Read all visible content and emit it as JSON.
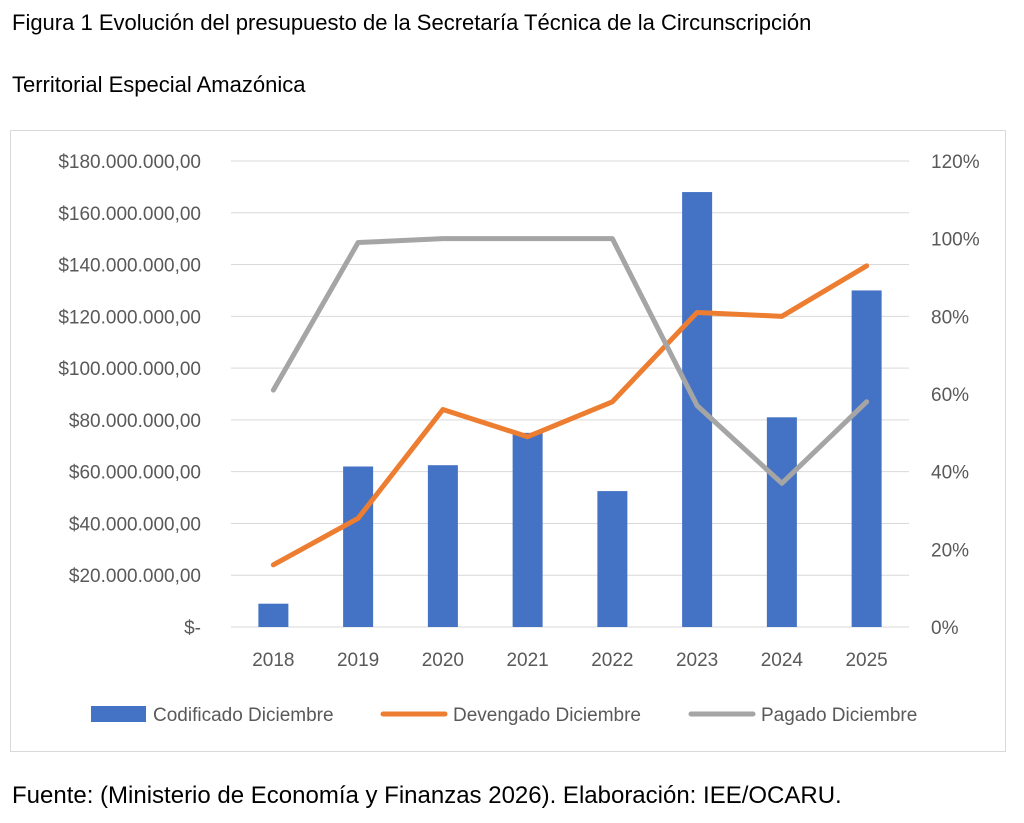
{
  "caption": {
    "line1": "Figura 1 Evolución del presupuesto de la Secretaría Técnica de la Circunscripción",
    "line2": "Territorial Especial Amazónica"
  },
  "source": "Fuente: (Ministerio de Economía y Finanzas 2026). Elaboración: IEE/OCARU.",
  "chart_data": {
    "type": "bar",
    "categories": [
      "2018",
      "2019",
      "2020",
      "2021",
      "2022",
      "2023",
      "2024",
      "2025"
    ],
    "series": [
      {
        "name": "Codificado Diciembre",
        "type": "bar",
        "axis": "left",
        "color": "#4472C4",
        "values": [
          9000000,
          62000000,
          62500000,
          75000000,
          52500000,
          168000000,
          81000000,
          130000000
        ]
      },
      {
        "name": "Devengado Diciembre",
        "type": "line",
        "axis": "right",
        "color": "#ED7D31",
        "values": [
          16,
          28,
          56,
          49,
          58,
          81,
          80,
          93
        ]
      },
      {
        "name": "Pagado Diciembre",
        "type": "line",
        "axis": "right",
        "color": "#A5A5A5",
        "values": [
          61,
          99,
          100,
          100,
          100,
          57,
          37,
          58
        ]
      }
    ],
    "left_axis": {
      "ylim": [
        0,
        180000000
      ],
      "ticks": [
        0,
        20000000,
        40000000,
        60000000,
        80000000,
        100000000,
        120000000,
        140000000,
        160000000,
        180000000
      ],
      "tick_labels": [
        "$-",
        "$20.000.000,00",
        "$40.000.000,00",
        "$60.000.000,00",
        "$80.000.000,00",
        "$100.000.000,00",
        "$120.000.000,00",
        "$140.000.000,00",
        "$160.000.000,00",
        "$180.000.000,00"
      ]
    },
    "right_axis": {
      "ylim": [
        0,
        120
      ],
      "ticks": [
        0,
        20,
        40,
        60,
        80,
        100,
        120
      ],
      "tick_labels": [
        "0%",
        "20%",
        "40%",
        "60%",
        "80%",
        "100%",
        "120%"
      ]
    },
    "gridlines": true,
    "legend_position": "bottom"
  }
}
